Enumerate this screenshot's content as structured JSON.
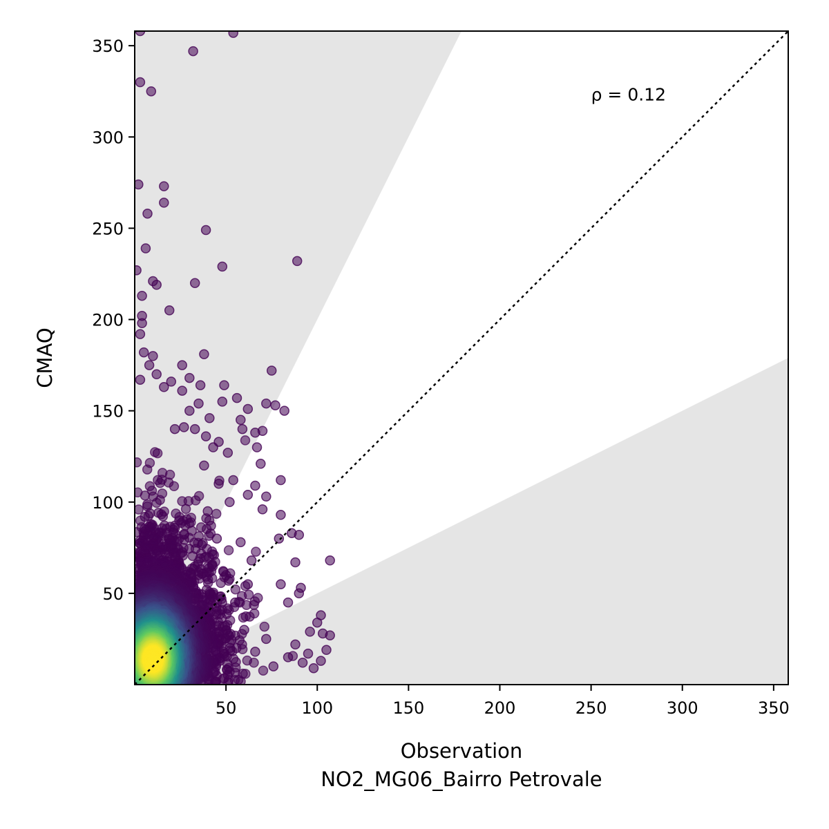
{
  "chart_data": {
    "type": "scatter",
    "title": "",
    "xlabel": "Observation",
    "xlabel_sub": "NO2_MG06_Bairro Petrovale",
    "ylabel": "CMAQ",
    "xlim": [
      0,
      358
    ],
    "ylim": [
      0,
      358
    ],
    "x_ticks": [
      50,
      100,
      150,
      200,
      250,
      300,
      350
    ],
    "y_ticks": [
      50,
      100,
      150,
      200,
      250,
      300,
      350
    ],
    "annotation": "ρ = 0.12",
    "annotation_pos": {
      "x": 250,
      "y": 320
    },
    "reference_line": {
      "type": "1:1",
      "style": "dotted",
      "color": "#000000"
    },
    "shaded_regions": {
      "upper_factor": 2,
      "lower_factor": 0.5,
      "color": "#e5e5e5"
    },
    "colormap": "viridis",
    "colors": {
      "low_density": "#440154",
      "mid_density": "#31688e",
      "high_density": "#fde725"
    },
    "grid": false,
    "legend": "none",
    "outlier_points": [
      [
        3,
        358
      ],
      [
        54,
        357
      ],
      [
        32,
        347
      ],
      [
        3,
        330
      ],
      [
        9,
        325
      ],
      [
        2,
        274
      ],
      [
        16,
        273
      ],
      [
        16,
        264
      ],
      [
        7,
        258
      ],
      [
        39,
        249
      ],
      [
        89,
        232
      ],
      [
        48,
        229
      ],
      [
        6,
        239
      ],
      [
        1,
        227
      ],
      [
        10,
        221
      ],
      [
        12,
        219
      ],
      [
        33,
        220
      ],
      [
        4,
        213
      ],
      [
        19,
        205
      ],
      [
        4,
        202
      ],
      [
        4,
        198
      ],
      [
        3,
        192
      ],
      [
        5,
        182
      ],
      [
        10,
        180
      ],
      [
        38,
        181
      ],
      [
        26,
        175
      ],
      [
        75,
        172
      ],
      [
        8,
        175
      ],
      [
        12,
        170
      ],
      [
        30,
        168
      ],
      [
        3,
        167
      ],
      [
        20,
        166
      ],
      [
        36,
        164
      ],
      [
        49,
        164
      ],
      [
        16,
        163
      ],
      [
        26,
        161
      ],
      [
        48,
        155
      ],
      [
        56,
        157
      ],
      [
        35,
        154
      ],
      [
        72,
        154
      ],
      [
        62,
        151
      ],
      [
        77,
        153
      ],
      [
        82,
        150
      ],
      [
        41,
        146
      ],
      [
        58,
        145
      ],
      [
        27,
        141
      ],
      [
        33,
        140
      ],
      [
        59,
        140
      ],
      [
        70,
        139
      ],
      [
        66,
        138
      ],
      [
        39,
        136
      ],
      [
        46,
        133
      ],
      [
        67,
        130
      ],
      [
        43,
        130
      ],
      [
        51,
        127
      ],
      [
        69,
        121
      ],
      [
        80,
        112
      ],
      [
        54,
        112
      ],
      [
        66,
        109
      ],
      [
        62,
        104
      ],
      [
        72,
        103
      ],
      [
        70,
        96
      ],
      [
        80,
        93
      ],
      [
        86,
        83
      ],
      [
        79,
        80
      ],
      [
        90,
        82
      ],
      [
        107,
        68
      ],
      [
        88,
        67
      ],
      [
        91,
        53
      ],
      [
        90,
        50
      ],
      [
        80,
        55
      ],
      [
        84,
        45
      ],
      [
        102,
        38
      ],
      [
        100,
        34
      ],
      [
        96,
        29
      ],
      [
        103,
        28
      ],
      [
        107,
        27
      ],
      [
        88,
        22
      ],
      [
        105,
        19
      ],
      [
        95,
        17
      ],
      [
        102,
        13
      ],
      [
        98,
        9
      ],
      [
        92,
        12
      ],
      [
        84,
        15
      ],
      [
        76,
        10
      ],
      [
        66,
        18
      ],
      [
        72,
        25
      ],
      [
        60,
        30
      ],
      [
        55,
        45
      ],
      [
        50,
        60
      ],
      [
        45,
        80
      ],
      [
        40,
        95
      ],
      [
        58,
        78
      ],
      [
        64,
        68
      ],
      [
        62,
        55
      ],
      [
        52,
        100
      ],
      [
        46,
        110
      ],
      [
        38,
        120
      ],
      [
        30,
        150
      ],
      [
        22,
        140
      ]
    ]
  }
}
